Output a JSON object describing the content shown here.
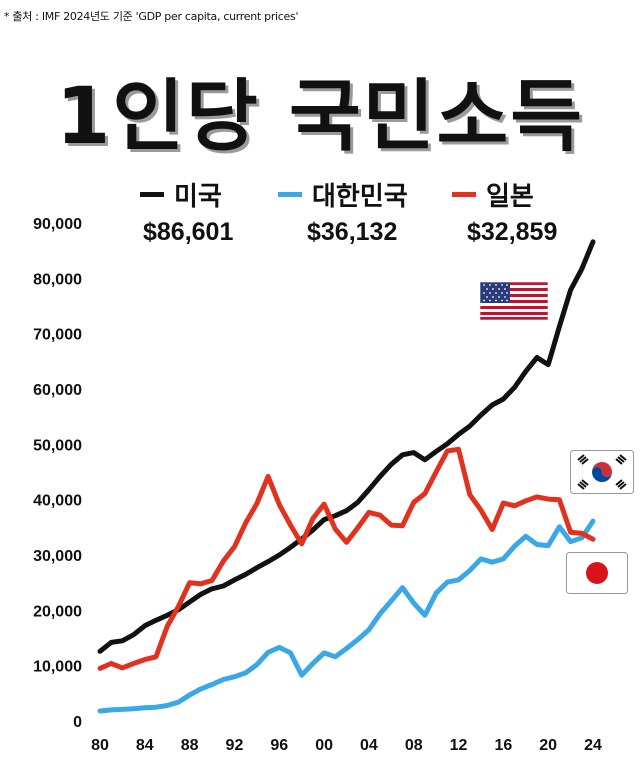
{
  "header": {
    "source": "* 출처 : IMF 2024년도 기준 'GDP per capita, current prices'",
    "title": "1인당 국민소득"
  },
  "legend": [
    {
      "name": "미국",
      "value": "$86,601",
      "color": "#111111"
    },
    {
      "name": "대한민국",
      "value": "$36,132",
      "color": "#3aa7e6"
    },
    {
      "name": "일본",
      "value": "$32,859",
      "color": "#e0321e"
    }
  ],
  "flags": [
    {
      "name": "us-flag-icon"
    },
    {
      "name": "korea-flag-icon"
    },
    {
      "name": "japan-flag-icon"
    }
  ],
  "chart_data": {
    "type": "line",
    "x": [
      1980,
      1981,
      1982,
      1983,
      1984,
      1985,
      1986,
      1987,
      1988,
      1989,
      1990,
      1991,
      1992,
      1993,
      1994,
      1995,
      1996,
      1997,
      1998,
      1999,
      2000,
      2001,
      2002,
      2003,
      2004,
      2005,
      2006,
      2007,
      2008,
      2009,
      2010,
      2011,
      2012,
      2013,
      2014,
      2015,
      2016,
      2017,
      2018,
      2019,
      2020,
      2021,
      2022,
      2023,
      2024
    ],
    "x_tick_values": [
      1980,
      1984,
      1988,
      1992,
      1996,
      2000,
      2004,
      2008,
      2012,
      2016,
      2020,
      2024
    ],
    "x_tick_labels": [
      "80",
      "84",
      "88",
      "92",
      "96",
      "00",
      "04",
      "08",
      "12",
      "16",
      "20",
      "24"
    ],
    "y_ticks": [
      0,
      10000,
      20000,
      30000,
      40000,
      50000,
      60000,
      70000,
      80000,
      90000
    ],
    "y_tick_labels": [
      "0",
      "10,000",
      "20,000",
      "30,000",
      "40,000",
      "50,000",
      "60,000",
      "70,000",
      "80,000",
      "90,000"
    ],
    "ylim": [
      0,
      90000
    ],
    "grid": false,
    "series": [
      {
        "name": "미국",
        "color": "#111111",
        "values": [
          12600,
          14200,
          14500,
          15600,
          17200,
          18200,
          19100,
          20100,
          21500,
          22900,
          23900,
          24400,
          25500,
          26500,
          27700,
          28800,
          30000,
          31400,
          32900,
          34500,
          36400,
          37100,
          38000,
          39500,
          41800,
          44200,
          46400,
          48100,
          48500,
          47200,
          48700,
          50100,
          51800,
          53300,
          55300,
          57100,
          58200,
          60300,
          63200,
          65700,
          64400,
          71300,
          77900,
          81700,
          86601
        ]
      },
      {
        "name": "대한민국",
        "color": "#3aa7e6",
        "values": [
          1800,
          2000,
          2100,
          2200,
          2400,
          2500,
          2800,
          3400,
          4700,
          5800,
          6600,
          7500,
          8000,
          8700,
          10200,
          12400,
          13300,
          12300,
          8300,
          10400,
          12300,
          11600,
          13100,
          14700,
          16500,
          19400,
          21700,
          24100,
          21300,
          19100,
          23100,
          25100,
          25500,
          27200,
          29300,
          28700,
          29300,
          31600,
          33400,
          31900,
          31700,
          35100,
          32400,
          33100,
          36132
        ]
      },
      {
        "name": "일본",
        "color": "#e0321e",
        "values": [
          9500,
          10400,
          9600,
          10400,
          11100,
          11600,
          17100,
          20700,
          25000,
          24800,
          25400,
          28900,
          31500,
          35800,
          39300,
          44200,
          39100,
          35400,
          32000,
          36600,
          39200,
          34700,
          32300,
          34900,
          37700,
          37200,
          35400,
          35300,
          39500,
          41100,
          45000,
          48800,
          49100,
          40900,
          38100,
          34600,
          39400,
          38900,
          39800,
          40500,
          40100,
          40000,
          34100,
          33900,
          32859
        ]
      }
    ]
  }
}
